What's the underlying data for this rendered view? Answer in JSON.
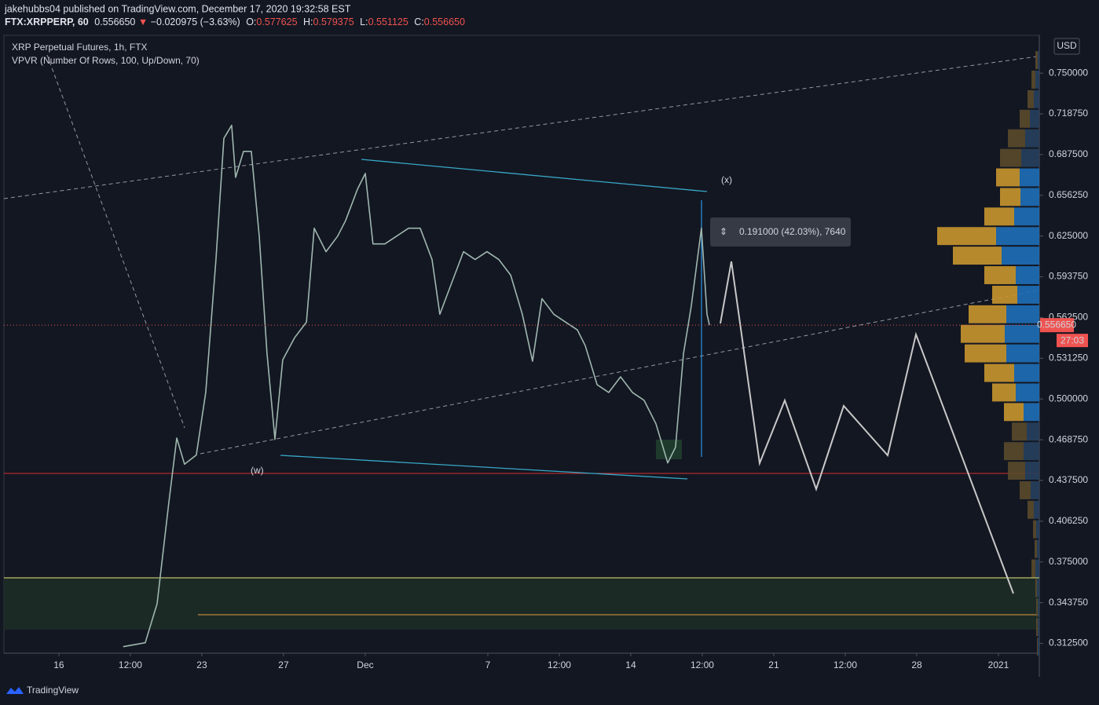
{
  "header": {
    "author_line": "jakehubbs04 published on TradingView.com, December 17, 2020 19:32:58 EST",
    "symbol": "FTX:XRPPERP, 60",
    "last": "0.556650",
    "change": "−0.020975 (−3.63%)",
    "o_label": "O:",
    "open": "0.577625",
    "h_label": "H:",
    "high": "0.579375",
    "l_label": "L:",
    "low": "0.551125",
    "c_label": "C:",
    "close": "0.556650"
  },
  "chart_data": {
    "type": "line",
    "title": "XRP Perpetual Futures, 1h, FTX",
    "indicator": "VPVR (Number Of Rows, 100, Up/Down, 70)",
    "currency": "USD",
    "x": [
      19.15,
      20.23,
      20.81,
      21.38,
      21.77,
      22.15,
      22.73,
      23.19,
      23.69,
      24.08,
      24.46,
      24.65,
      25.04,
      25.42,
      25.81,
      26.19,
      26.58,
      26.96,
      27.54,
      28.12,
      28.5,
      29.08,
      29.65,
      30.04,
      30.62,
      31.0,
      31.38,
      31.96,
      32.54,
      33.12,
      33.69,
      34.27,
      34.65,
      35.23,
      35.81,
      36.38,
      36.96,
      37.54,
      38.12,
      38.69,
      39.19,
      39.65,
      40.23,
      40.81,
      41.38,
      41.77,
      42.35,
      42.92,
      43.5,
      44.08,
      44.65,
      45.23,
      45.81,
      46.19,
      46.58,
      46.96,
      47.46,
      47.73,
      47.85
    ],
    "series": [
      {
        "color": "#9fb7ae",
        "values": [
          0.31,
          0.313,
          0.343,
          0.42,
          0.47,
          0.45,
          0.457,
          0.505,
          0.607,
          0.7,
          0.71,
          0.67,
          0.69,
          0.69,
          0.625,
          0.535,
          0.469,
          0.53,
          0.547,
          0.559,
          0.631,
          0.613,
          0.625,
          0.637,
          0.661,
          0.673,
          0.619,
          0.619,
          0.625,
          0.631,
          0.631,
          0.607,
          0.565,
          0.589,
          0.613,
          0.607,
          0.613,
          0.607,
          0.595,
          0.565,
          0.529,
          0.577,
          0.565,
          0.559,
          0.553,
          0.541,
          0.511,
          0.505,
          0.517,
          0.505,
          0.499,
          0.481,
          0.451,
          0.463,
          0.535,
          0.571,
          0.631,
          0.565,
          0.5567
        ]
      }
    ],
    "xlim": [
      13.31,
      64
    ],
    "xticks": [
      16,
      {
        "value": 19.5,
        "label": "12:00"
      },
      23,
      27,
      {
        "value": 31,
        "label": "Dec"
      },
      {
        "value": 37,
        "label": "7"
      },
      {
        "value": 40.5,
        "label": "12:00"
      },
      {
        "value": 44,
        "label": "14"
      },
      {
        "value": 47.5,
        "label": "12:00"
      },
      {
        "value": 51,
        "label": "21"
      },
      {
        "value": 54.5,
        "label": "12:00"
      },
      {
        "value": 58,
        "label": "28"
      },
      {
        "value": 62,
        "label": "2021"
      }
    ],
    "ylim": [
      0.305,
      0.779
    ],
    "yticks": [
      {
        "value": 0.75,
        "label": "0.750000"
      },
      {
        "value": 0.71875,
        "label": "0.718750"
      },
      {
        "value": 0.6875,
        "label": "0.687500"
      },
      {
        "value": 0.65625,
        "label": "0.656250"
      },
      {
        "value": 0.625,
        "label": "0.625000"
      },
      {
        "value": 0.59375,
        "label": "0.593750"
      },
      {
        "value": 0.5625,
        "label": "0.562500"
      },
      {
        "value": 0.53125,
        "label": "0.531250"
      },
      {
        "value": 0.5,
        "label": "0.500000"
      },
      {
        "value": 0.46875,
        "label": "0.468750"
      },
      {
        "value": 0.4375,
        "label": "0.437500"
      },
      {
        "value": 0.40625,
        "label": "0.406250"
      },
      {
        "value": 0.375,
        "label": "0.375000"
      },
      {
        "value": 0.34375,
        "label": "0.343750"
      },
      {
        "value": 0.3125,
        "label": "0.312500"
      }
    ],
    "grid": false,
    "last_price": {
      "value": 0.55665,
      "label": "0.556650"
    },
    "countdown": "27:03",
    "annotations": [
      "(x)",
      "(w)",
      "0.191000 (42.03%), 7640"
    ],
    "volume_profile": {
      "row_step": 0.015,
      "value_area": [
        0.48,
        0.67
      ],
      "up_color": "#1f6fb8",
      "down_color": "#c9962f",
      "up_dim_color": "#27405e",
      "down_dim_color": "#5b4a2b",
      "price": [
        0.31,
        0.325,
        0.34,
        0.355,
        0.37,
        0.385,
        0.4,
        0.415,
        0.43,
        0.445,
        0.46,
        0.475,
        0.49,
        0.505,
        0.52,
        0.535,
        0.55,
        0.565,
        0.58,
        0.595,
        0.61,
        0.625,
        0.64,
        0.655,
        0.67,
        0.685,
        0.7,
        0.715,
        0.73,
        0.745,
        0.76
      ],
      "up": [
        2,
        2,
        2,
        3,
        5,
        3,
        4,
        7,
        11,
        18,
        20,
        16,
        20,
        30,
        32,
        42,
        44,
        42,
        28,
        30,
        48,
        55,
        32,
        24,
        25,
        23,
        18,
        12,
        7,
        5,
        2
      ],
      "down": [
        1,
        2,
        2,
        2,
        5,
        3,
        4,
        8,
        14,
        22,
        25,
        19,
        25,
        30,
        38,
        53,
        56,
        48,
        32,
        40,
        62,
        75,
        38,
        26,
        30,
        27,
        22,
        13,
        8,
        5,
        3
      ]
    }
  },
  "footer": {
    "brand": "TradingView"
  }
}
